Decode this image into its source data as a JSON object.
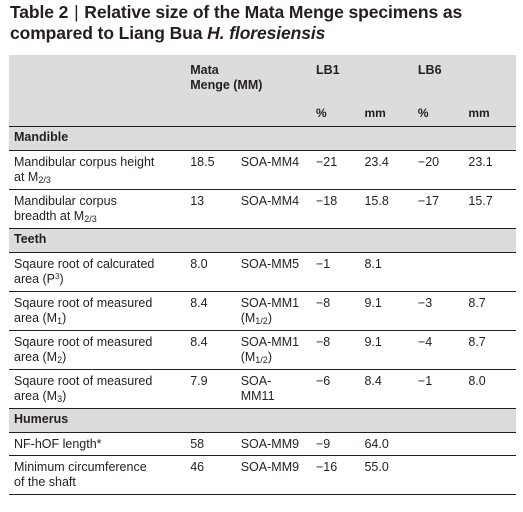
{
  "title": {
    "label": "Table 2",
    "separator": "|",
    "text_a": "Relative size of the Mata Menge specimens as compared to Liang Bua",
    "text_italic": "H. floresiensis"
  },
  "header": {
    "mm_line1": "Mata",
    "mm_line2": "Menge (MM)",
    "lb1": "LB1",
    "lb6": "LB6",
    "pct": "%",
    "mm": "mm"
  },
  "sections": {
    "mandible": "Mandible",
    "teeth": "Teeth",
    "humerus": "Humerus"
  },
  "rows": {
    "r1": {
      "l1": "Mandibular corpus height",
      "l2a": "at M",
      "l2sub": "2/3",
      "v": "18.5",
      "s": "SOA-MM4",
      "lb1p": "−21",
      "lb1m": "23.4",
      "lb6p": "−20",
      "lb6m": "23.1"
    },
    "r2": {
      "l1": "Mandibular corpus",
      "l2a": "breadth at M",
      "l2sub": "2/3",
      "v": "13",
      "s": "SOA-MM4",
      "lb1p": "−18",
      "lb1m": "15.8",
      "lb6p": "−17",
      "lb6m": "15.7"
    },
    "r3": {
      "l1": "Sqaure root of calcurated",
      "l2a": "area (P",
      "l2sup": "3",
      "l2b": ")",
      "v": "8.0",
      "s": "SOA-MM5",
      "lb1p": "−1",
      "lb1m": "8.1",
      "lb6p": "",
      "lb6m": ""
    },
    "r4": {
      "l1": "Sqaure root of measured",
      "l2a": "area (M",
      "l2sub": "1",
      "l2b": ")",
      "v": "8.4",
      "s1": "SOA-MM1",
      "s2a": "(M",
      "s2sub": "1/2",
      "s2b": ")",
      "lb1p": "−8",
      "lb1m": "9.1",
      "lb6p": "−3",
      "lb6m": "8.7"
    },
    "r5": {
      "l1": "Sqaure root of measured",
      "l2a": "area (M",
      "l2sub": "2",
      "l2b": ")",
      "v": "8.4",
      "s1": "SOA-MM1",
      "s2a": "(M",
      "s2sub": "1/2",
      "s2b": ")",
      "lb1p": "−8",
      "lb1m": "9.1",
      "lb6p": "−4",
      "lb6m": "8.7"
    },
    "r6": {
      "l1": "Sqaure root of measured",
      "l2a": "area (M",
      "l2sub": "3",
      "l2b": ")",
      "v": "7.9",
      "s1": "SOA-",
      "s2": "MM11",
      "lb1p": "−6",
      "lb1m": "8.4",
      "lb6p": "−1",
      "lb6m": "8.0"
    },
    "r7": {
      "l1": "NF-hOF length*",
      "v": "58",
      "s": "SOA-MM9",
      "lb1p": "−9",
      "lb1m": "64.0",
      "lb6p": "",
      "lb6m": ""
    },
    "r8": {
      "l1": "Minimum circumference",
      "l2a": "of the shaft",
      "v": "46",
      "s": "SOA-MM9",
      "lb1p": "−16",
      "lb1m": "55.0",
      "lb6p": "",
      "lb6m": ""
    }
  }
}
